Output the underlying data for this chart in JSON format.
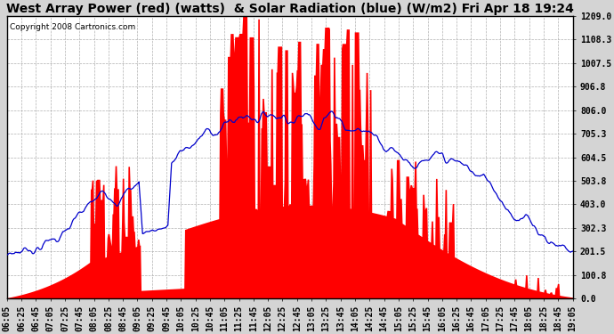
{
  "title": "West Array Power (red) (watts)  & Solar Radiation (blue) (W/m2) Fri Apr 18 19:24",
  "copyright": "Copyright 2008 Cartronics.com",
  "y_ticks": [
    0.0,
    100.8,
    201.5,
    302.3,
    403.0,
    503.8,
    604.5,
    705.3,
    806.0,
    906.8,
    1007.5,
    1108.3,
    1209.0
  ],
  "y_max": 1209.0,
  "y_min": 0.0,
  "x_start_min": 365,
  "x_end_min": 1146,
  "x_tick_interval_min": 20,
  "bg_color": "#d4d4d4",
  "plot_bg_color": "#ffffff",
  "red_color": "#ff0000",
  "blue_color": "#0000cc",
  "grid_color": "#b0b0b0",
  "title_fontsize": 10,
  "tick_fontsize": 7,
  "copyright_fontsize": 6.5
}
